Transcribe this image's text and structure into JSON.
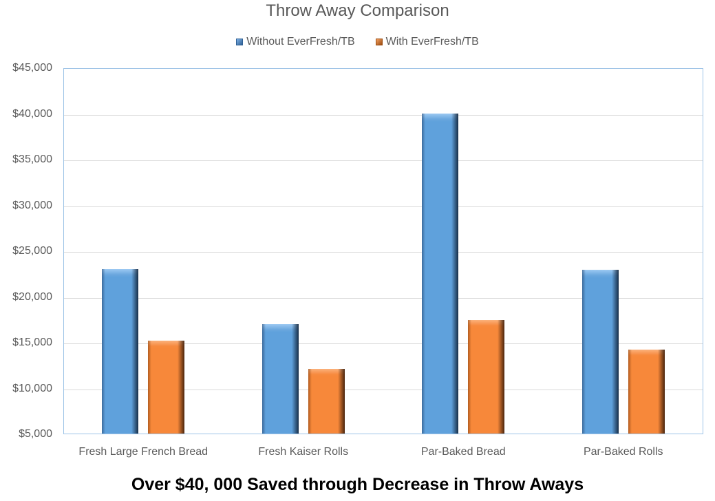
{
  "chart_data": {
    "type": "bar",
    "title": "Throw Away Comparison",
    "xlabel": "",
    "ylabel": "",
    "categories": [
      "Fresh Large French Bread",
      "Fresh Kaiser Rolls",
      "Par-Baked Bread",
      "Par-Baked Rolls"
    ],
    "series": [
      {
        "name": "Without EverFresh/TB",
        "color": "#5B9BD5",
        "values": [
          23000,
          16950,
          39950,
          22900
        ]
      },
      {
        "name": "With EverFresh/TB",
        "color": "#ED7D31",
        "values": [
          15150,
          12080,
          17400,
          14170
        ]
      }
    ],
    "ylim": [
      5000,
      45000
    ],
    "yticks": [
      "$5,000",
      "$10,000",
      "$15,000",
      "$20,000",
      "$25,000",
      "$30,000",
      "$35,000",
      "$40,000",
      "$45,000"
    ],
    "grid": true,
    "legend_position": "top",
    "caption": "Over $40, 000 Saved through Decrease in Throw Aways"
  },
  "title": "Throw Away Comparison",
  "legend": [
    "Without EverFresh/TB",
    "With EverFresh/TB"
  ],
  "caption": "Over $40, 000 Saved through Decrease in Throw Aways"
}
